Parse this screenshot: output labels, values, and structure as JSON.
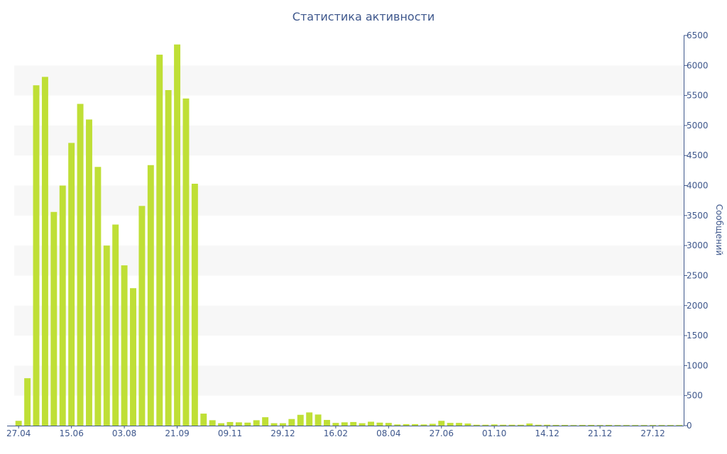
{
  "chart_data": {
    "type": "bar",
    "title": "Статистика активности",
    "ylabel": "Сообщений",
    "xlabel": "",
    "ylim": [
      0,
      6500
    ],
    "yticks": [
      0,
      500,
      1000,
      1500,
      2000,
      2500,
      3000,
      3500,
      4000,
      4500,
      5000,
      5500,
      6000,
      6500
    ],
    "x_tick_labels": [
      "27.04",
      "15.06",
      "03.08",
      "21.09",
      "09.11",
      "29.12",
      "16.02",
      "08.04",
      "27.06",
      "01.10",
      "14.12",
      "21.12",
      "27.12"
    ],
    "x_tick_bar_index": [
      0,
      6,
      12,
      18,
      24,
      30,
      36,
      42,
      48,
      54,
      60,
      66,
      72
    ],
    "band_stripes": true,
    "colors": {
      "bar": "#bfdf36",
      "text": "#3e578c",
      "band": "#f7f7f7",
      "axis": "#3e578c"
    },
    "values": [
      80,
      790,
      5670,
      5810,
      3560,
      4000,
      4710,
      5360,
      5100,
      4310,
      3000,
      3350,
      2670,
      2290,
      3660,
      4340,
      6180,
      5590,
      6350,
      5450,
      4030,
      200,
      90,
      40,
      60,
      55,
      50,
      90,
      140,
      40,
      40,
      110,
      180,
      220,
      185,
      95,
      45,
      55,
      60,
      40,
      65,
      50,
      45,
      20,
      25,
      25,
      20,
      30,
      80,
      45,
      45,
      35,
      15,
      15,
      20,
      15,
      15,
      15,
      35,
      15,
      15,
      12,
      12,
      10,
      12,
      12,
      10,
      12,
      10,
      10,
      10,
      10,
      10,
      10,
      10,
      10
    ]
  }
}
